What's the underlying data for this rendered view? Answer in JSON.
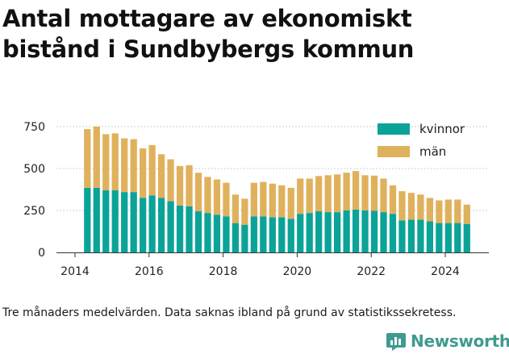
{
  "title": "Antal mottagare av ekonomiskt bistånd i Sundbybergs kommun",
  "caption": "Tre månaders medelvärden. Data saknas ibland på grund av statistikssekretess.",
  "logo": {
    "text": "Newsworthy",
    "icon": "newsworthy-logo-icon",
    "color": "#3f9a8f"
  },
  "chart_data": {
    "type": "bar",
    "stacked": true,
    "x_start": "2014-05",
    "period_months": 3,
    "xticks": [
      2014,
      2016,
      2018,
      2020,
      2022,
      2024
    ],
    "yticks": [
      0,
      250,
      500,
      750
    ],
    "ylim": [
      0,
      800
    ],
    "grid": true,
    "legend_position": "top-right",
    "series": [
      {
        "name": "kvinnor",
        "color": "#0ba398",
        "values": [
          385,
          385,
          370,
          370,
          360,
          360,
          325,
          340,
          325,
          305,
          280,
          275,
          245,
          235,
          225,
          215,
          175,
          165,
          215,
          215,
          210,
          210,
          200,
          230,
          235,
          245,
          240,
          240,
          250,
          255,
          250,
          248,
          240,
          230,
          190,
          195,
          195,
          185,
          175,
          175,
          175,
          170
        ]
      },
      {
        "name": "män",
        "color": "#e0b15c",
        "values": [
          350,
          365,
          335,
          340,
          320,
          315,
          295,
          300,
          260,
          250,
          235,
          245,
          230,
          215,
          210,
          200,
          170,
          155,
          200,
          205,
          200,
          190,
          185,
          210,
          205,
          210,
          220,
          225,
          225,
          230,
          210,
          210,
          200,
          170,
          175,
          160,
          150,
          140,
          135,
          140,
          140,
          115
        ]
      }
    ]
  }
}
